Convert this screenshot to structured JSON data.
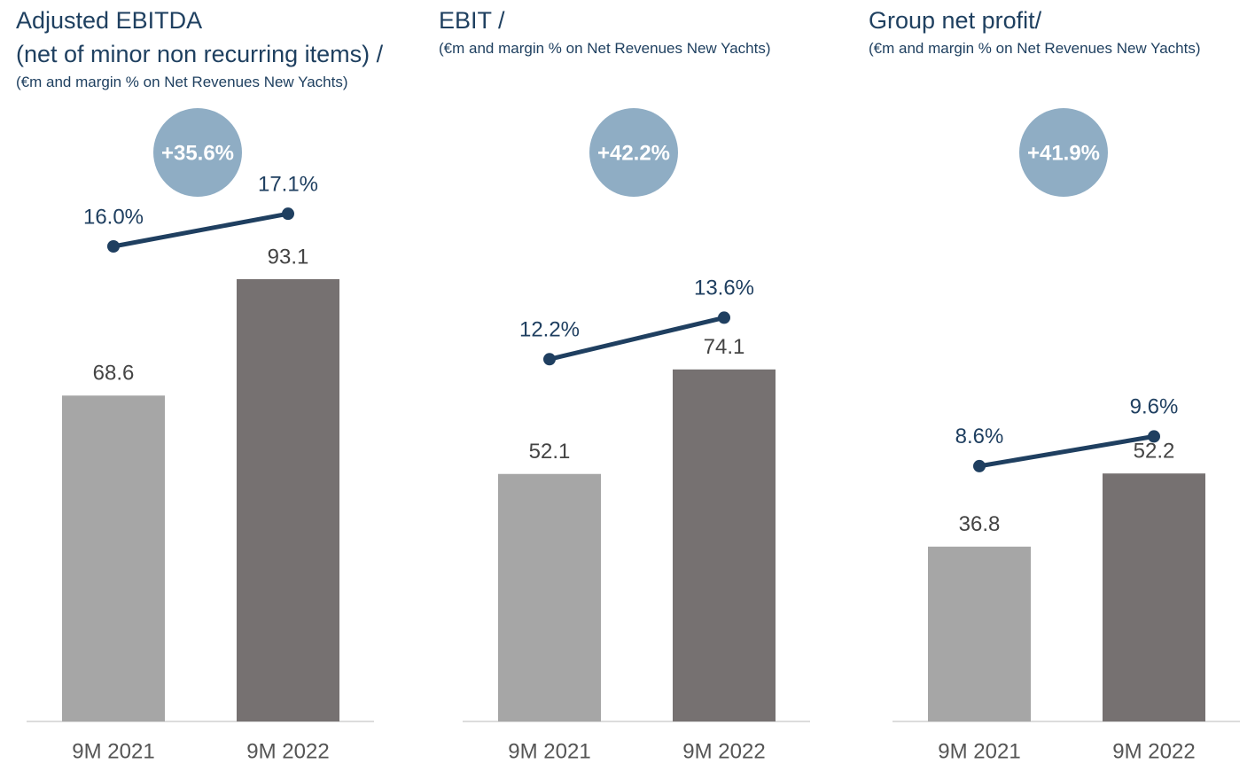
{
  "chart_data": [
    {
      "type": "combo",
      "title": [
        "Adjusted EBITDA",
        "(net of minor non recurring items) /"
      ],
      "subtitle": "(€m and margin % on Net Revenues New Yachts)",
      "annotation": "+35.6%",
      "categories": [
        "9M 2021",
        "9M 2022"
      ],
      "ylim": [
        0,
        100
      ],
      "y2lim": [
        0,
        16
      ],
      "series": [
        {
          "type": "bar",
          "colors": [
            "#a6a6a6",
            "#767171"
          ],
          "values": [
            68.6,
            93.1
          ]
        },
        {
          "type": "line",
          "axis": "y2",
          "color": "#1f3f60",
          "values": [
            16.0,
            17.1
          ],
          "value_labels": [
            "16.0%",
            "17.1%"
          ]
        }
      ]
    },
    {
      "type": "combo",
      "title": [
        "EBIT /"
      ],
      "subtitle": "(€m and margin % on Net Revenues New Yachts)",
      "annotation": "+42.2%",
      "categories": [
        "9M 2021",
        "9M 2022"
      ],
      "ylim": [
        0,
        100
      ],
      "y2lim": [
        0,
        16
      ],
      "series": [
        {
          "type": "bar",
          "colors": [
            "#a6a6a6",
            "#767171"
          ],
          "values": [
            52.1,
            74.1
          ]
        },
        {
          "type": "line",
          "axis": "y2",
          "color": "#1f3f60",
          "values": [
            12.2,
            13.6
          ],
          "value_labels": [
            "12.2%",
            "13.6%"
          ]
        }
      ]
    },
    {
      "type": "combo",
      "title": [
        "Group net profit/"
      ],
      "subtitle": "(€m and margin % on Net Revenues New Yachts)",
      "annotation": "+41.9%",
      "categories": [
        "9M 2021",
        "9M 2022"
      ],
      "ylim": [
        0,
        100
      ],
      "y2lim": [
        0,
        16
      ],
      "series": [
        {
          "type": "bar",
          "colors": [
            "#a6a6a6",
            "#767171"
          ],
          "values": [
            36.8,
            52.2
          ]
        },
        {
          "type": "line",
          "axis": "y2",
          "color": "#1f3f60",
          "values": [
            8.6,
            9.6
          ],
          "value_labels": [
            "8.6%",
            "9.6%"
          ]
        }
      ]
    }
  ]
}
